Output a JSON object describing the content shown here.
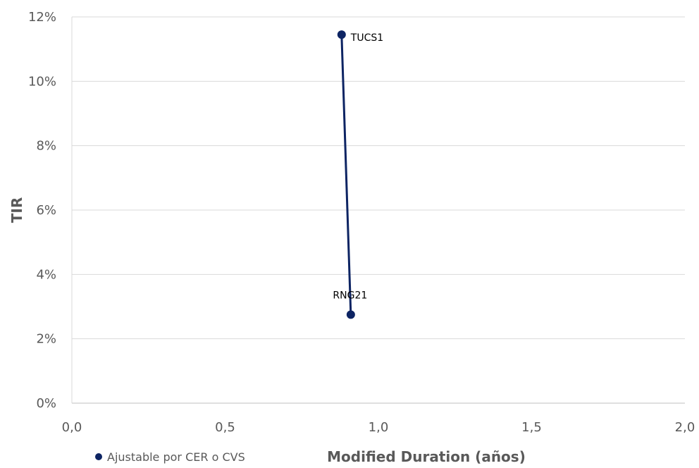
{
  "chart_data": {
    "type": "line",
    "xlabel": "Modified Duration (años)",
    "ylabel": "TIR",
    "xlim": [
      0,
      2
    ],
    "ylim": [
      0,
      12
    ],
    "x_ticks": [
      "0,0",
      "0,5",
      "1,0",
      "1,5",
      "2,0"
    ],
    "y_ticks": [
      "0%",
      "2%",
      "4%",
      "6%",
      "8%",
      "10%",
      "12%"
    ],
    "grid": true,
    "legend_position": "bottom-left",
    "series": [
      {
        "name": "Ajustable por CER o CVS",
        "color": "#0d2463",
        "points": [
          {
            "x": 0.88,
            "y": 11.45,
            "label": "TUCS1"
          },
          {
            "x": 0.91,
            "y": 2.75,
            "label": "RNG21"
          }
        ]
      }
    ]
  }
}
